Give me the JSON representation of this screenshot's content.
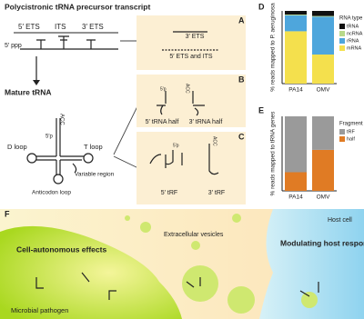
{
  "panel_labels": [
    "A",
    "B",
    "C",
    "D",
    "E",
    "F"
  ],
  "precursor": {
    "title": "Polycistronic tRNA precursor transcript",
    "five_ppp": "5′ ppp",
    "five_ets": "5′ ETS",
    "its": "ITS",
    "three_ets": "3′ ETS"
  },
  "mature": {
    "title": "Mature tRNA",
    "acc": "ACC",
    "five_p": "5′p",
    "d_loop": "D loop",
    "t_loop": "T loop",
    "variable_region": "Variable region",
    "anticodon_loop": "Anticodon loop"
  },
  "panel_a": {
    "items": [
      "3′ ETS",
      "5′ ETS and ITS"
    ]
  },
  "panel_b": {
    "five_p": "5′p",
    "acc": "ACC",
    "items": [
      "5′ tRNA half",
      "3′ tRNA half"
    ]
  },
  "panel_c": {
    "five_p": "5′p",
    "acc": "ACC",
    "items": [
      "5′ tRF",
      "3′ tRF"
    ]
  },
  "panel_f": {
    "left": "Cell-autonomous effects",
    "vesicles": "Extracellular vesicles",
    "host": "Host cell",
    "right": "Modulating host responses",
    "pathogen": "Microbial pathogen"
  },
  "chart_data": [
    {
      "type": "bar",
      "stacked": true,
      "ylabel": "% reads mapped to P. aeruginosa",
      "categories": [
        "PA14",
        "OMV"
      ],
      "ylim": [
        0,
        100
      ],
      "legend_title": "RNA type",
      "series": [
        {
          "name": "mRNA",
          "color": "#f4e04d",
          "values": [
            72,
            40
          ]
        },
        {
          "name": "rRNA",
          "color": "#4ea6dc",
          "values": [
            22,
            52
          ]
        },
        {
          "name": "ncRNA",
          "color": "#b8d98a",
          "values": [
            1,
            1
          ]
        },
        {
          "name": "tRNA",
          "color": "#111111",
          "values": [
            5,
            7
          ]
        }
      ]
    },
    {
      "type": "bar",
      "stacked": true,
      "ylabel": "% reads mapped to tRNA genes",
      "categories": [
        "PA14",
        "OMV"
      ],
      "ylim": [
        0,
        100
      ],
      "legend_title": "Fragment type",
      "series": [
        {
          "name": "half",
          "color": "#e07b24",
          "values": [
            25,
            55
          ]
        },
        {
          "name": "tRF",
          "color": "#9a9a9a",
          "values": [
            75,
            45
          ]
        }
      ]
    }
  ]
}
